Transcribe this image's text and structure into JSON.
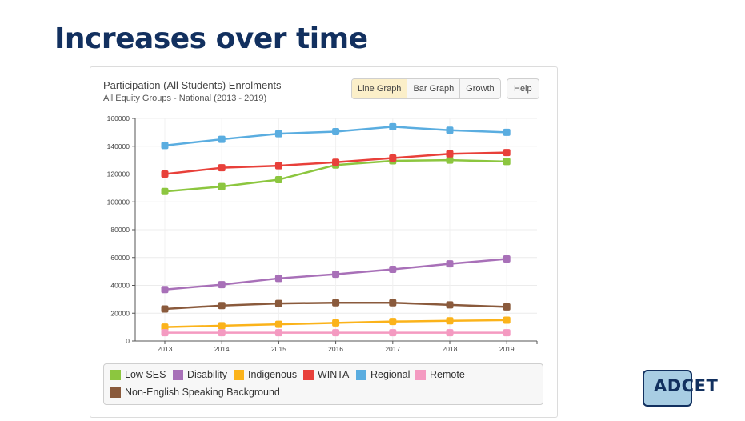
{
  "slide": {
    "title": "Increases over time"
  },
  "panel": {
    "title": "Participation (All Students) Enrolments",
    "subtitle": "All Equity Groups - National (2013 - 2019)",
    "buttons": [
      "Line Graph",
      "Bar Graph",
      "Growth"
    ],
    "active_button": "Line Graph",
    "help_label": "Help"
  },
  "logo": {
    "text": "ADCET"
  },
  "chart_data": {
    "type": "line",
    "title": "Participation (All Students) Enrolments",
    "subtitle": "All Equity Groups - National (2013 - 2019)",
    "x": [
      "2013",
      "2014",
      "2015",
      "2016",
      "2017",
      "2018",
      "2019"
    ],
    "ylim": [
      0,
      160000
    ],
    "yticks": [
      "0",
      "20000",
      "40000",
      "60000",
      "80000",
      "100000",
      "120000",
      "140000",
      "160000"
    ],
    "grid": true,
    "legend_position": "bottom",
    "series": [
      {
        "name": "Low SES",
        "color": "#8cc63f",
        "values": [
          107500,
          111000,
          116000,
          126500,
          129500,
          130000,
          129000
        ]
      },
      {
        "name": "Disability",
        "color": "#a870b8",
        "values": [
          37000,
          40500,
          45000,
          48000,
          51500,
          55500,
          59000
        ]
      },
      {
        "name": "Indigenous",
        "color": "#fbb31a",
        "values": [
          10000,
          11000,
          12000,
          13000,
          14000,
          14500,
          15000
        ]
      },
      {
        "name": "WINTA",
        "color": "#e8403a",
        "values": [
          120000,
          124500,
          126000,
          128500,
          131500,
          134500,
          135500
        ]
      },
      {
        "name": "Regional",
        "color": "#5aade0",
        "values": [
          140500,
          145000,
          149000,
          150500,
          154000,
          151500,
          150000
        ]
      },
      {
        "name": "Remote",
        "color": "#f49ac1",
        "values": [
          6000,
          6000,
          6000,
          6000,
          6000,
          6000,
          6000
        ]
      },
      {
        "name": "Non-English Speaking Background",
        "color": "#8a5a3c",
        "values": [
          23000,
          25500,
          27000,
          27500,
          27500,
          26000,
          24500
        ]
      }
    ]
  }
}
